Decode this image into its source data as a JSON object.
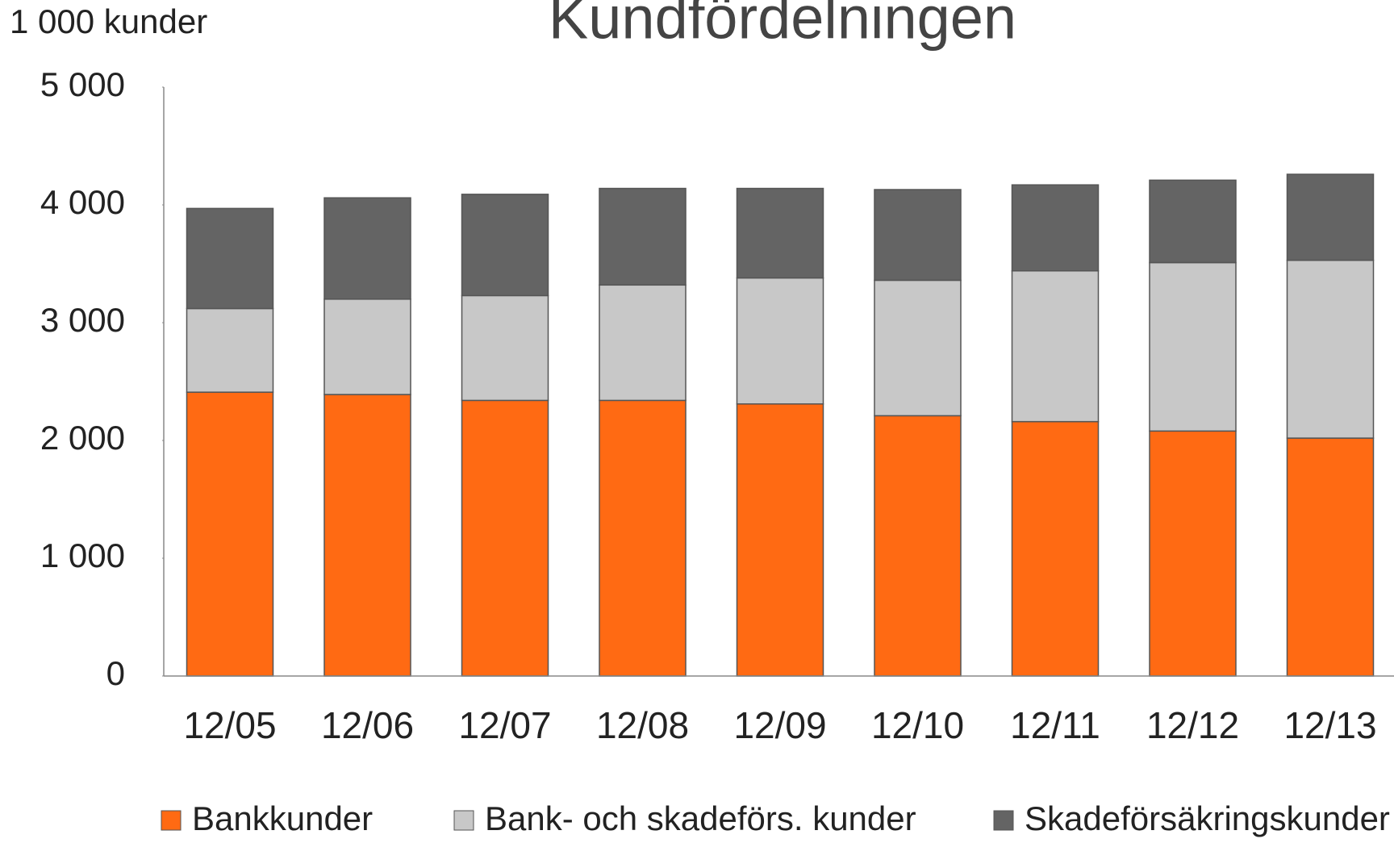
{
  "chart_data": {
    "type": "stacked_bar",
    "title": "Kundfördelningen",
    "y_axis_label": "1 000 kunder",
    "categories": [
      "12/05",
      "12/06",
      "12/07",
      "12/08",
      "12/09",
      "12/10",
      "12/11",
      "12/12",
      "12/13"
    ],
    "series": [
      {
        "name": "Bankkunder",
        "color": "#ff6a13",
        "values": [
          2410,
          2390,
          2340,
          2340,
          2310,
          2210,
          2160,
          2080,
          2020
        ]
      },
      {
        "name": "Bank- och skadeförs. kunder",
        "color": "#c8c8c8",
        "values": [
          710,
          810,
          890,
          980,
          1070,
          1150,
          1280,
          1430,
          1510
        ]
      },
      {
        "name": "Skadeförsäkringskunder",
        "color": "#646464",
        "values": [
          850,
          860,
          860,
          820,
          760,
          770,
          730,
          700,
          730
        ]
      }
    ],
    "ylim": [
      0,
      5000
    ],
    "yticks": [
      0,
      {
        "value": 1000,
        "label": "1 000"
      },
      {
        "value": 2000,
        "label": "2 000"
      },
      {
        "value": 3000,
        "label": "3 000"
      },
      {
        "value": 4000,
        "label": "4 000"
      },
      {
        "value": 5000,
        "label": "5 000"
      }
    ],
    "legend": "bottom"
  }
}
